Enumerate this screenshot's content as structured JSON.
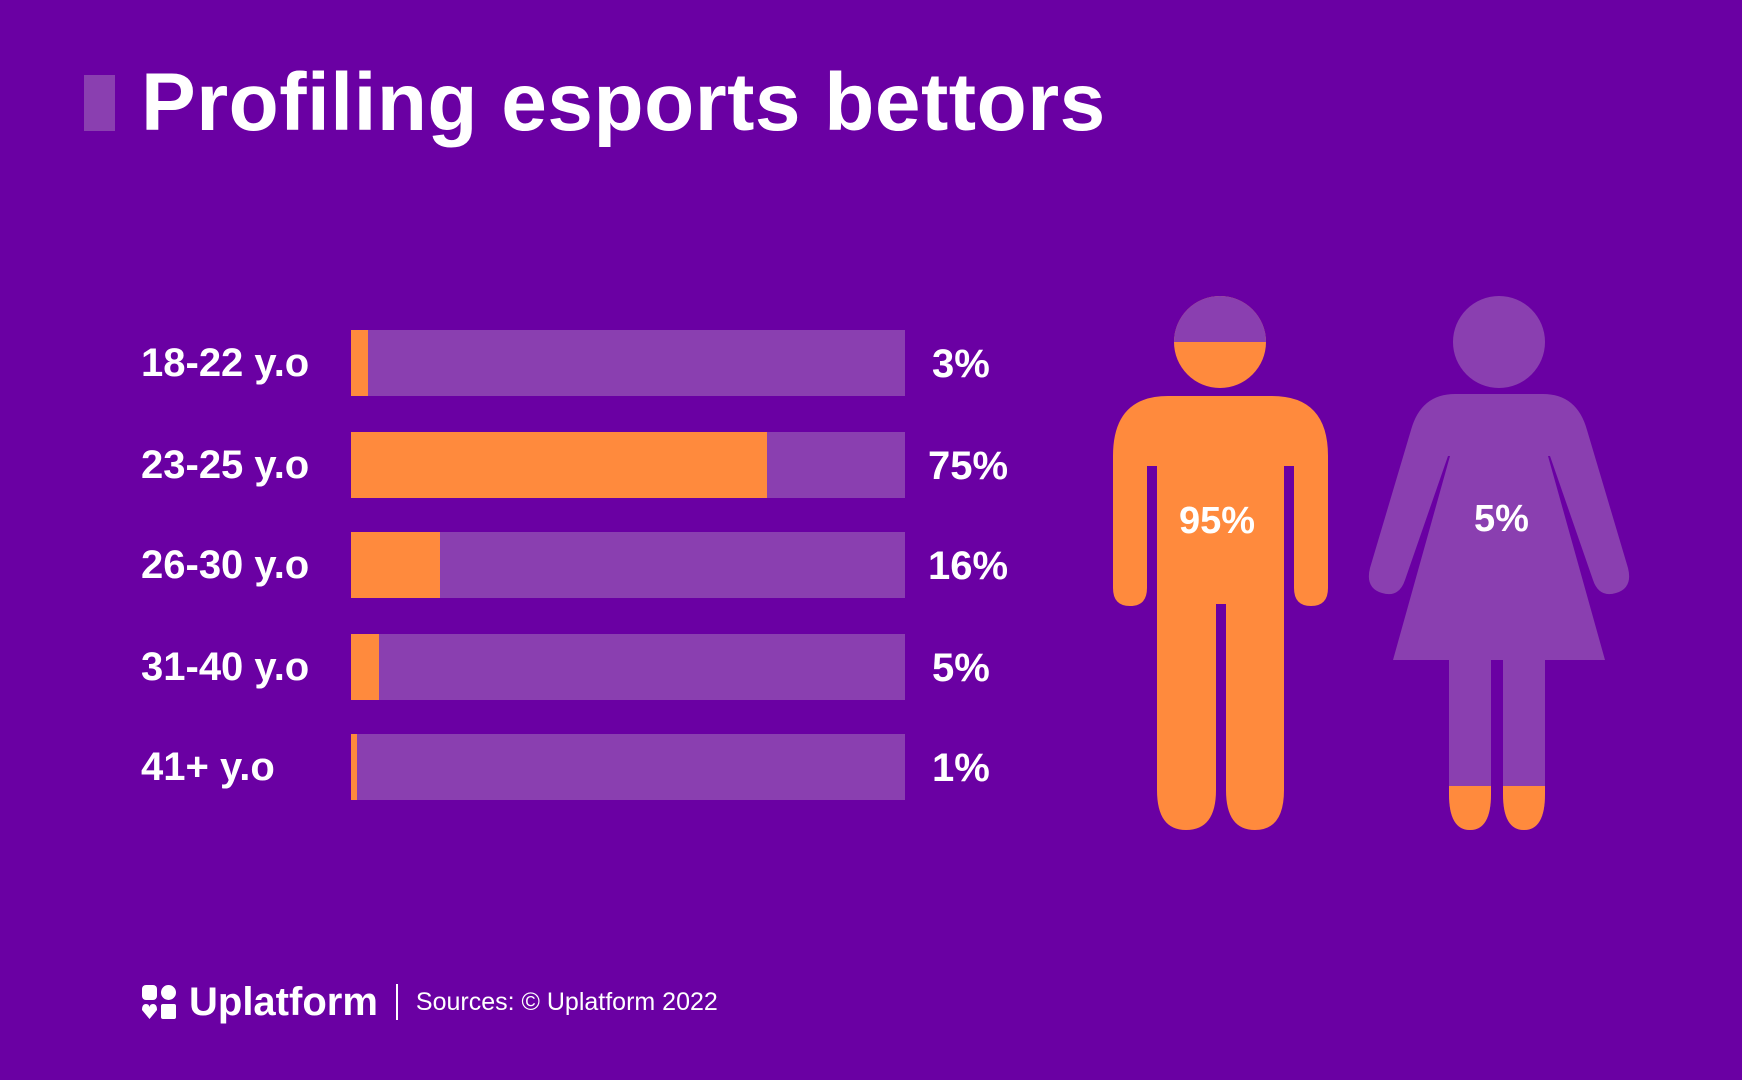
{
  "title": "Profiling esports bettors",
  "colors": {
    "background": "#6a00a3",
    "track": "#8a3fb0",
    "accent": "#ff8a3d"
  },
  "chart_data": [
    {
      "type": "bar",
      "orientation": "horizontal",
      "categories": [
        "18-22 y.o",
        "23-25 y.o",
        "26-30 y.o",
        "31-40 y.o",
        "41+ y.o"
      ],
      "values": [
        3,
        75,
        16,
        5,
        1
      ],
      "value_labels": [
        "3%",
        "75%",
        "16%",
        "5%",
        "1%"
      ],
      "xlim": [
        0,
        100
      ]
    },
    {
      "type": "pictogram",
      "categories": [
        "male",
        "female"
      ],
      "values": [
        95,
        5
      ],
      "value_labels": [
        "95%",
        "5%"
      ]
    }
  ],
  "footer": {
    "brand": "Uplatform",
    "source": "Sources: © Uplatform 2022"
  }
}
